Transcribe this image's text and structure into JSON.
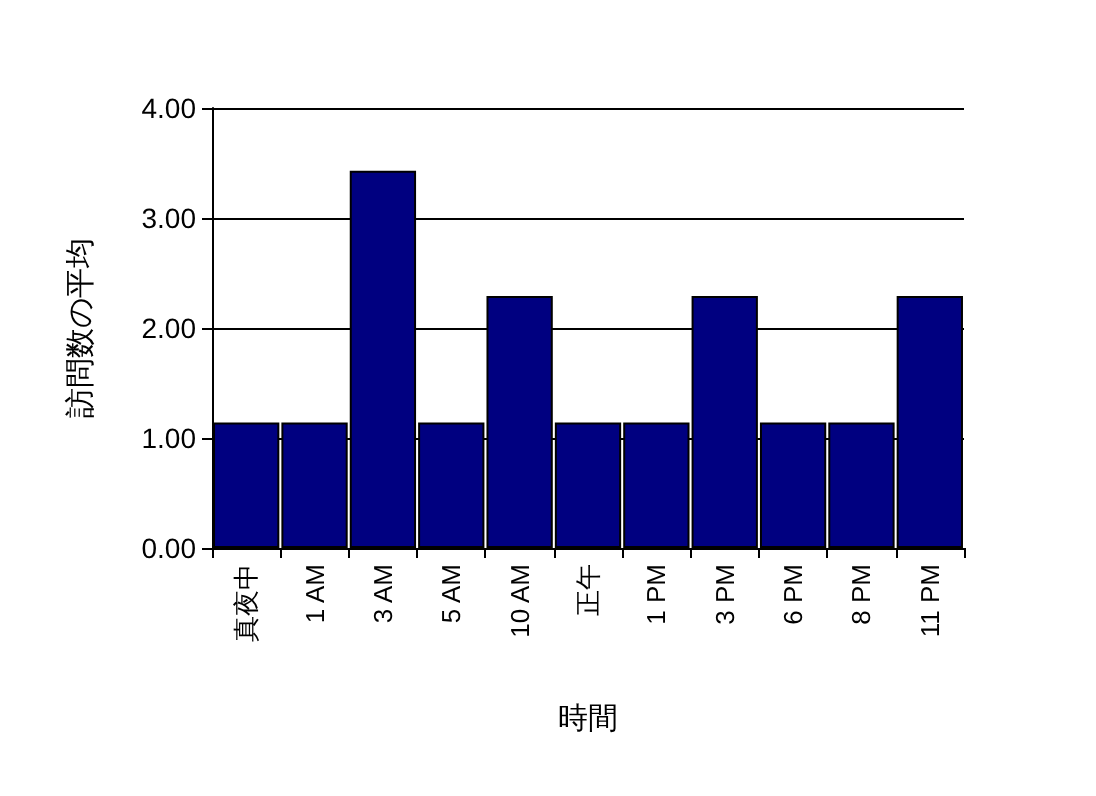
{
  "chart_data": {
    "type": "bar",
    "xlabel": "時間",
    "ylabel": "訪問数の平均",
    "categories": [
      "真夜中",
      "1 AM",
      "3 AM",
      "5 AM",
      "10 AM",
      "正午",
      "1 PM",
      "3 PM",
      "6 PM",
      "8 PM",
      "11 PM"
    ],
    "values": [
      1.14,
      1.14,
      3.43,
      1.14,
      2.29,
      1.14,
      1.14,
      2.29,
      1.14,
      1.14,
      2.29
    ],
    "color": "#000080",
    "ylim": [
      0,
      4
    ],
    "yticks": [
      {
        "value": 0,
        "label": "0.00"
      },
      {
        "value": 1,
        "label": "1.00"
      },
      {
        "value": 2,
        "label": "2.00"
      },
      {
        "value": 3,
        "label": "3.00"
      },
      {
        "value": 4,
        "label": "4.00"
      }
    ],
    "grid": "y"
  }
}
